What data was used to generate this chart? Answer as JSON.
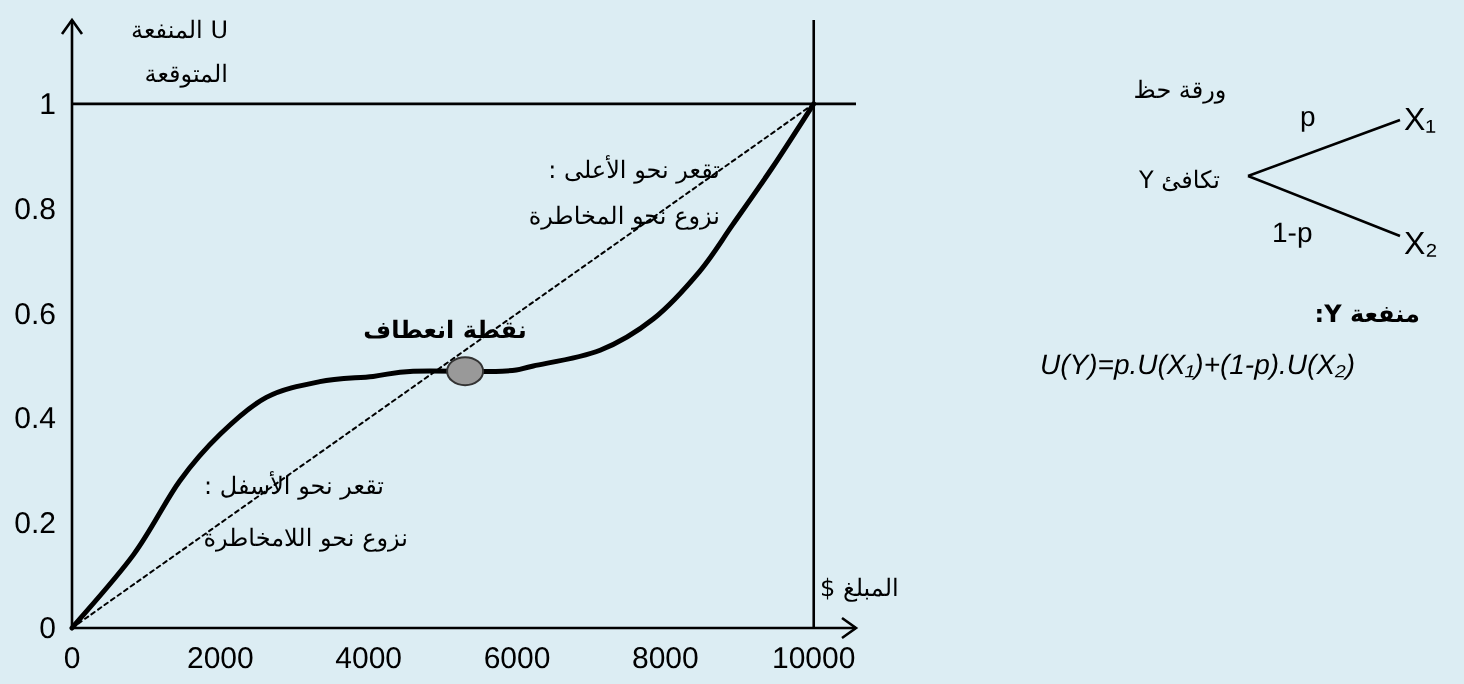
{
  "chart_data": {
    "type": "line",
    "xlabel": "المبلغ $",
    "ylabel": "U المنفعة المتوقعة",
    "xlim": [
      0,
      10570
    ],
    "ylim": [
      0,
      1.16
    ],
    "xticks": [
      0,
      2000,
      4000,
      6000,
      8000,
      10000
    ],
    "yticks": [
      0,
      0.2,
      0.4,
      0.6,
      0.8,
      1
    ],
    "grid": false,
    "ref_lines": [
      {
        "axis": "y",
        "value": 1,
        "color": "#000000"
      },
      {
        "axis": "x",
        "value": 10000,
        "color": "#000000"
      }
    ],
    "series": [
      {
        "type": "line",
        "color": "#000000",
        "line_style": "solid",
        "x": [
          0,
          830,
          1450,
          2000,
          2620,
          3340,
          4060,
          4600,
          5800,
          6220,
          7120,
          7840,
          8460,
          8910,
          9450,
          10000
        ],
        "values": [
          0,
          0.14,
          0.28,
          0.37,
          0.44,
          0.47,
          0.48,
          0.49,
          0.49,
          0.5,
          0.53,
          0.59,
          0.68,
          0.77,
          0.88,
          1
        ]
      },
      {
        "type": "line",
        "color": "#000000",
        "line_style": "dotted",
        "x": [
          0,
          10000
        ],
        "values": [
          0,
          1
        ]
      },
      {
        "type": "scatter",
        "color": "#999999",
        "marker": "circle",
        "x": [
          5300
        ],
        "values": [
          0.49
        ]
      }
    ],
    "annotations": [
      {
        "text": "نقطة انعطاف",
        "x": 5300,
        "y": 0.49
      },
      "تقعر نحو الأعلى :",
      "نزوع نحو المخاطرة",
      "تقعر نحو الأسفل :",
      "نزوع نحو اللامخاطرة",
      "ورقة حظ",
      "p",
      "1-p",
      "X₁",
      "X₂",
      "تكافئ Y",
      "منفعة Y:",
      "U(Y)=p.U(X₁)+(1-p).U(X₂)"
    ]
  }
}
